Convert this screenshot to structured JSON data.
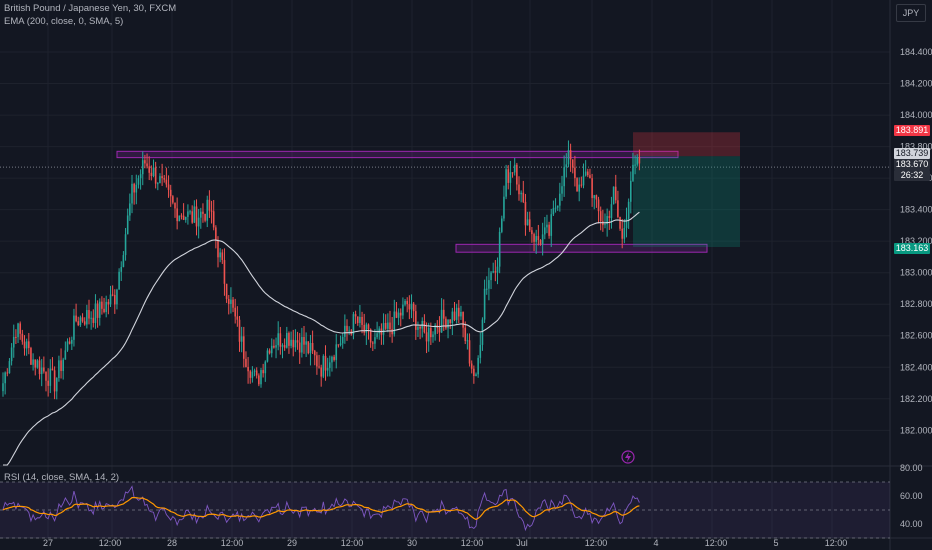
{
  "header": {
    "symbol": "British Pound / Japanese Yen, 30, FXCM",
    "indicator": "EMA (200, close, 0, SMA, 5)",
    "currency": "JPY"
  },
  "rsi_legend": "RSI (14, close, SMA, 14, 2)",
  "price_badges": {
    "sl": "183.891",
    "last": "183.739",
    "prev": "183.670",
    "countdown": "26:32",
    "tp": "183.163"
  },
  "colors": {
    "background": "#131722",
    "up": "#26a69a",
    "down": "#ef5350",
    "ema": "#d1d4dc",
    "zone": "#9c27b0",
    "rsi_line": "#7e57c2",
    "rsi_ma": "#ff9800",
    "stop_badge": "#f23645",
    "target_badge": "#089981"
  },
  "chart_data": [
    {
      "type": "candlestick",
      "title": "British Pound / Japanese Yen, 30, FXCM",
      "ylim": [
        181.78,
        184.73
      ],
      "y_ticks": [
        "184.400",
        "184.200",
        "184.000",
        "183.800",
        "183.600",
        "183.400",
        "183.200",
        "183.000",
        "182.800",
        "182.600",
        "182.400",
        "182.200",
        "182.000"
      ],
      "x_ticks": [
        "27",
        "12:00",
        "28",
        "12:00",
        "29",
        "12:00",
        "30",
        "12:00",
        "Jul",
        "12:00",
        "4",
        "12:00",
        "5",
        "12:00"
      ],
      "anchors": [
        [
          0,
          182.3
        ],
        [
          6,
          182.65
        ],
        [
          14,
          182.45
        ],
        [
          24,
          182.3
        ],
        [
          34,
          182.7
        ],
        [
          44,
          182.75
        ],
        [
          52,
          182.85
        ],
        [
          60,
          183.5
        ],
        [
          66,
          183.7
        ],
        [
          72,
          183.6
        ],
        [
          80,
          183.4
        ],
        [
          88,
          183.35
        ],
        [
          96,
          183.4
        ],
        [
          104,
          182.9
        ],
        [
          112,
          182.5
        ],
        [
          118,
          182.3
        ],
        [
          124,
          182.55
        ],
        [
          132,
          182.6
        ],
        [
          140,
          182.55
        ],
        [
          148,
          182.4
        ],
        [
          156,
          182.55
        ],
        [
          164,
          182.7
        ],
        [
          172,
          182.55
        ],
        [
          180,
          182.65
        ],
        [
          188,
          182.8
        ],
        [
          196,
          182.6
        ],
        [
          204,
          182.7
        ],
        [
          212,
          182.75
        ],
        [
          220,
          182.3
        ],
        [
          224,
          182.9
        ],
        [
          230,
          183.1
        ],
        [
          234,
          183.6
        ],
        [
          238,
          183.7
        ],
        [
          242,
          183.4
        ],
        [
          248,
          183.2
        ],
        [
          254,
          183.25
        ],
        [
          260,
          183.6
        ],
        [
          264,
          183.75
        ],
        [
          268,
          183.5
        ],
        [
          272,
          183.65
        ],
        [
          276,
          183.4
        ],
        [
          280,
          183.3
        ],
        [
          284,
          183.5
        ],
        [
          288,
          183.2
        ],
        [
          292,
          183.6
        ],
        [
          296,
          183.7
        ]
      ],
      "ema_label": "EMA (200, close, 0, SMA, 5)",
      "levels": {
        "resistance_zone": [
          183.73,
          183.77
        ],
        "support_zone": [
          183.13,
          183.18
        ],
        "position_entry": 183.739,
        "stop_loss": 183.891,
        "take_profit": 183.163,
        "current_price": 183.67
      }
    },
    {
      "type": "line",
      "title": "RSI (14, close, SMA, 14, 2)",
      "ylim": [
        30,
        80
      ],
      "y_ticks": [
        "80.00",
        "60.00",
        "40.00"
      ],
      "bands": [
        70,
        50,
        30
      ]
    }
  ]
}
